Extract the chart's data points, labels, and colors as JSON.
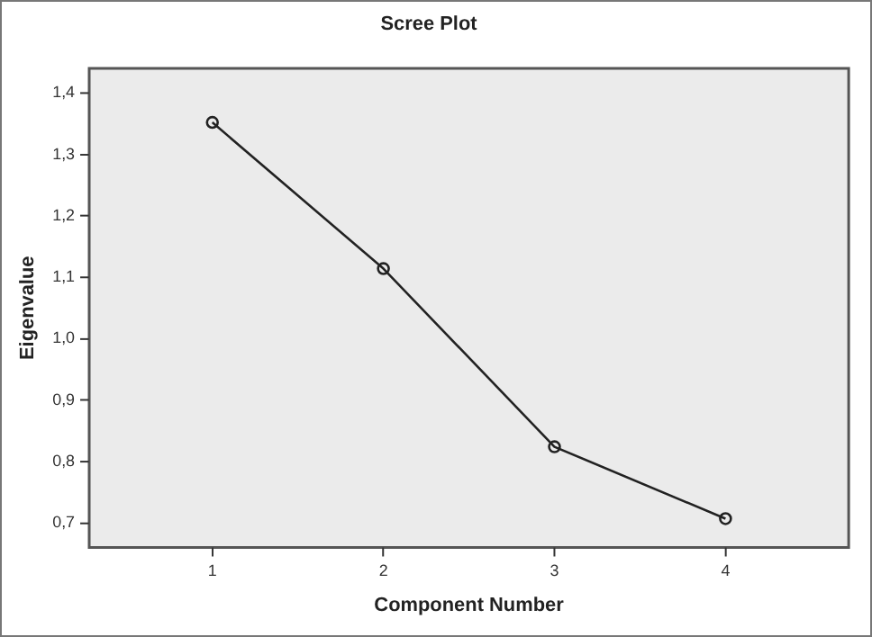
{
  "chart_data": {
    "type": "line",
    "title": "Scree Plot",
    "xlabel": "Component Number",
    "ylabel": "Eigenvalue",
    "x": [
      1,
      2,
      3,
      4
    ],
    "series": [
      {
        "color": "#222222",
        "values": [
          1.352,
          1.114,
          0.824,
          0.707
        ]
      }
    ],
    "xlim": [
      0.28,
      4.72
    ],
    "xticks": [
      1,
      2,
      3,
      4
    ],
    "ylim": [
      0.66,
      1.44
    ],
    "yticks": [
      {
        "value": 0.7,
        "label": "0,7"
      },
      {
        "value": 0.8,
        "label": "0,8"
      },
      {
        "value": 0.9,
        "label": "0,9"
      },
      {
        "value": 1.0,
        "label": "1,0"
      },
      {
        "value": 1.1,
        "label": "1,1"
      },
      {
        "value": 1.2,
        "label": "1,2"
      },
      {
        "value": 1.3,
        "label": "1,3"
      },
      {
        "value": 1.4,
        "label": "1,4"
      }
    ],
    "grid": false,
    "legend": false,
    "marker": "circle",
    "line_style": "solid"
  }
}
